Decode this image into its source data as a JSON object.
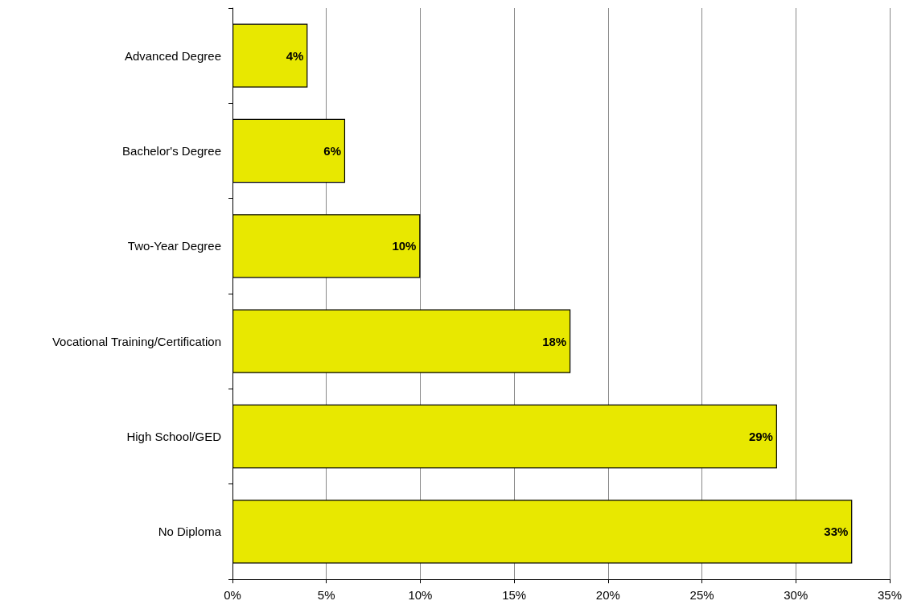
{
  "chart_data": {
    "type": "bar",
    "orientation": "horizontal",
    "categories": [
      "Advanced Degree",
      "Bachelor's Degree",
      "Two-Year Degree",
      "Vocational Training/Certification",
      "High School/GED",
      "No Diploma"
    ],
    "values": [
      4,
      6,
      10,
      18,
      29,
      33
    ],
    "value_labels": [
      "4%",
      "6%",
      "10%",
      "18%",
      "29%",
      "33%"
    ],
    "color": "#e8e800",
    "xlim": [
      0,
      35
    ],
    "xticks": [
      {
        "value": 0,
        "label": "0%"
      },
      {
        "value": 5,
        "label": "5%"
      },
      {
        "value": 10,
        "label": "10%"
      },
      {
        "value": 15,
        "label": "15%"
      },
      {
        "value": 20,
        "label": "20%"
      },
      {
        "value": 25,
        "label": "25%"
      },
      {
        "value": 30,
        "label": "30%"
      },
      {
        "value": 35,
        "label": "35%"
      }
    ],
    "grid": "x"
  }
}
